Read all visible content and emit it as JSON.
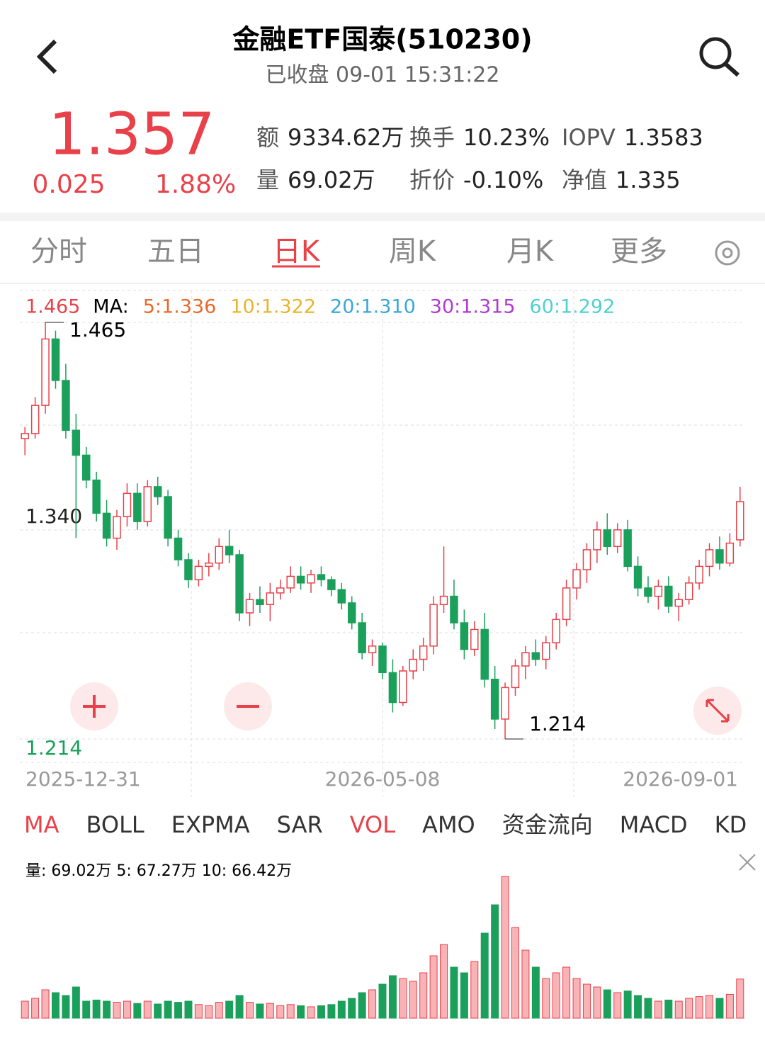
{
  "header": {
    "title": "金融ETF国泰(510230)",
    "status": "已收盘 09-01 15:31:22"
  },
  "quote": {
    "price": "1.357",
    "change": "0.025",
    "change_pct": "1.88%",
    "stats": [
      [
        "额",
        "9334.62万"
      ],
      [
        "换手",
        "10.23%"
      ],
      [
        "IOPV",
        "1.3583"
      ],
      [
        "量",
        "69.02万"
      ],
      [
        "折价",
        "-0.10%"
      ],
      [
        "净值",
        "1.335"
      ]
    ]
  },
  "tabs": {
    "items": [
      "分时",
      "五日",
      "日K",
      "周K",
      "月K",
      "更多"
    ],
    "active": "日K"
  },
  "ma_legend": {
    "price": "1.465",
    "label": "MA:",
    "items": [
      {
        "text": "5:1.336",
        "color": "#e8692a"
      },
      {
        "text": "10:1.322",
        "color": "#e8b52a"
      },
      {
        "text": "20:1.310",
        "color": "#3aa6d8"
      },
      {
        "text": "30:1.315",
        "color": "#b03ad0"
      },
      {
        "text": "60:1.292",
        "color": "#4fd0d0"
      }
    ]
  },
  "indicators": {
    "items": [
      "MA",
      "BOLL",
      "EXPMA",
      "SAR",
      "VOL",
      "AMO",
      "资金流向",
      "MACD",
      "KD"
    ],
    "active": [
      "MA",
      "VOL"
    ]
  },
  "volume_legend": "量:  69.02万  5:  67.27万  10:  66.42万",
  "chart_data": {
    "type": "candlestick",
    "up_color": "#e8414a",
    "down_color": "#1aa05a",
    "ylim": [
      1.214,
      1.465
    ],
    "yticks": [
      {
        "value": 1.34,
        "label": "1.340"
      },
      1.214
    ],
    "max_label": "1.465",
    "min_label": "1.214",
    "categories": [
      "2025-12-31",
      null,
      null,
      null,
      null,
      null,
      null,
      null,
      null,
      null,
      null,
      null,
      null,
      null,
      null,
      null,
      null,
      null,
      null,
      null,
      null,
      null,
      null,
      null,
      null,
      null,
      null,
      null,
      null,
      null,
      null,
      null,
      null,
      null,
      null,
      "2026-05-08",
      null,
      null,
      null,
      null,
      null,
      null,
      null,
      null,
      null,
      null,
      null,
      null,
      null,
      null,
      null,
      null,
      null,
      null,
      null,
      null,
      null,
      null,
      null,
      null,
      null,
      null,
      null,
      null,
      null,
      null,
      null,
      null,
      null,
      null,
      "2026-09-01"
    ],
    "candles": [
      [
        1.395,
        1.402,
        1.385,
        1.398
      ],
      [
        1.398,
        1.42,
        1.395,
        1.415
      ],
      [
        1.415,
        1.465,
        1.41,
        1.455
      ],
      [
        1.455,
        1.46,
        1.425,
        1.43
      ],
      [
        1.43,
        1.44,
        1.395,
        1.4
      ],
      [
        1.4,
        1.41,
        1.335,
        1.385
      ],
      [
        1.385,
        1.39,
        1.365,
        1.37
      ],
      [
        1.37,
        1.375,
        1.345,
        1.35
      ],
      [
        1.35,
        1.358,
        1.33,
        1.335
      ],
      [
        1.335,
        1.352,
        1.328,
        1.348
      ],
      [
        1.348,
        1.368,
        1.342,
        1.362
      ],
      [
        1.362,
        1.368,
        1.34,
        1.345
      ],
      [
        1.345,
        1.37,
        1.342,
        1.366
      ],
      [
        1.366,
        1.372,
        1.355,
        1.36
      ],
      [
        1.36,
        1.364,
        1.33,
        1.335
      ],
      [
        1.335,
        1.34,
        1.318,
        1.322
      ],
      [
        1.322,
        1.326,
        1.305,
        1.31
      ],
      [
        1.31,
        1.322,
        1.306,
        1.318
      ],
      [
        1.318,
        1.326,
        1.312,
        1.32
      ],
      [
        1.32,
        1.335,
        1.316,
        1.33
      ],
      [
        1.33,
        1.34,
        1.32,
        1.325
      ],
      [
        1.325,
        1.328,
        1.285,
        1.29
      ],
      [
        1.29,
        1.302,
        1.282,
        1.298
      ],
      [
        1.298,
        1.306,
        1.29,
        1.295
      ],
      [
        1.295,
        1.308,
        1.285,
        1.302
      ],
      [
        1.302,
        1.31,
        1.298,
        1.305
      ],
      [
        1.305,
        1.318,
        1.302,
        1.312
      ],
      [
        1.312,
        1.318,
        1.304,
        1.308
      ],
      [
        1.308,
        1.316,
        1.302,
        1.313
      ],
      [
        1.313,
        1.318,
        1.306,
        1.31
      ],
      [
        1.31,
        1.312,
        1.3,
        1.304
      ],
      [
        1.304,
        1.308,
        1.292,
        1.296
      ],
      [
        1.296,
        1.3,
        1.28,
        1.284
      ],
      [
        1.284,
        1.29,
        1.262,
        1.266
      ],
      [
        1.266,
        1.274,
        1.258,
        1.27
      ],
      [
        1.27,
        1.272,
        1.25,
        1.254
      ],
      [
        1.254,
        1.262,
        1.23,
        1.236
      ],
      [
        1.236,
        1.258,
        1.234,
        1.255
      ],
      [
        1.255,
        1.268,
        1.25,
        1.262
      ],
      [
        1.262,
        1.275,
        1.255,
        1.27
      ],
      [
        1.27,
        1.3,
        1.265,
        1.295
      ],
      [
        1.295,
        1.33,
        1.29,
        1.3
      ],
      [
        1.3,
        1.31,
        1.28,
        1.284
      ],
      [
        1.284,
        1.292,
        1.262,
        1.268
      ],
      [
        1.268,
        1.285,
        1.264,
        1.28
      ],
      [
        1.28,
        1.29,
        1.245,
        1.25
      ],
      [
        1.25,
        1.258,
        1.22,
        1.226
      ],
      [
        1.226,
        1.248,
        1.214,
        1.245
      ],
      [
        1.245,
        1.262,
        1.24,
        1.258
      ],
      [
        1.258,
        1.27,
        1.25,
        1.266
      ],
      [
        1.266,
        1.274,
        1.258,
        1.262
      ],
      [
        1.262,
        1.276,
        1.256,
        1.272
      ],
      [
        1.272,
        1.29,
        1.268,
        1.286
      ],
      [
        1.286,
        1.31,
        1.282,
        1.305
      ],
      [
        1.305,
        1.32,
        1.298,
        1.316
      ],
      [
        1.316,
        1.332,
        1.308,
        1.328
      ],
      [
        1.328,
        1.345,
        1.32,
        1.34
      ],
      [
        1.34,
        1.35,
        1.325,
        1.33
      ],
      [
        1.33,
        1.344,
        1.326,
        1.34
      ],
      [
        1.34,
        1.346,
        1.315,
        1.318
      ],
      [
        1.318,
        1.324,
        1.3,
        1.305
      ],
      [
        1.305,
        1.312,
        1.296,
        1.3
      ],
      [
        1.3,
        1.31,
        1.292,
        1.306
      ],
      [
        1.306,
        1.312,
        1.29,
        1.294
      ],
      [
        1.294,
        1.302,
        1.285,
        1.298
      ],
      [
        1.298,
        1.312,
        1.295,
        1.308
      ],
      [
        1.308,
        1.322,
        1.304,
        1.318
      ],
      [
        1.318,
        1.332,
        1.312,
        1.328
      ],
      [
        1.328,
        1.336,
        1.316,
        1.32
      ],
      [
        1.32,
        1.338,
        1.318,
        1.332
      ],
      [
        1.334,
        1.366,
        1.33,
        1.357
      ]
    ],
    "volume": [
      30,
      35,
      50,
      45,
      40,
      55,
      30,
      32,
      30,
      28,
      30,
      26,
      30,
      25,
      30,
      28,
      30,
      24,
      22,
      28,
      30,
      40,
      28,
      25,
      26,
      22,
      24,
      22,
      20,
      22,
      24,
      30,
      35,
      45,
      50,
      60,
      75,
      70,
      65,
      80,
      110,
      130,
      90,
      80,
      100,
      150,
      200,
      250,
      160,
      120,
      90,
      70,
      80,
      90,
      70,
      60,
      55,
      50,
      45,
      48,
      40,
      35,
      30,
      32,
      30,
      35,
      38,
      40,
      35,
      42,
      69.02
    ],
    "volume_ylim": [
      0,
      250
    ]
  }
}
